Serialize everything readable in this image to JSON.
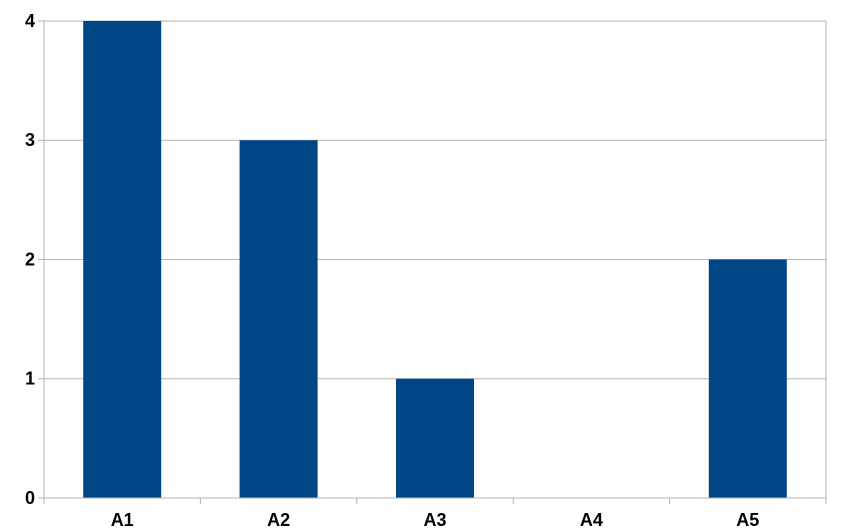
{
  "chart_data": {
    "type": "bar",
    "categories": [
      "A1",
      "A2",
      "A3",
      "A4",
      "A5"
    ],
    "values": [
      4,
      3,
      1,
      0,
      2
    ],
    "title": "",
    "xlabel": "",
    "ylabel": "",
    "ylim": [
      0,
      4
    ],
    "yticks": [
      "0",
      "1",
      "2",
      "3",
      "4"
    ],
    "grid": "horizontal",
    "legend": "none",
    "bar_color": "#004586"
  }
}
